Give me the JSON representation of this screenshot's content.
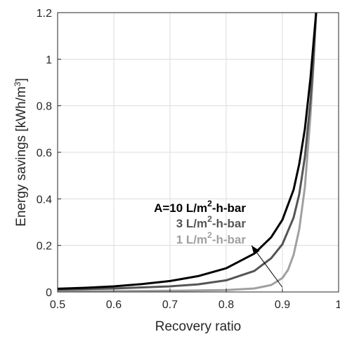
{
  "chart_data": {
    "type": "line",
    "xlabel": "Recovery ratio",
    "ylabel": {
      "text": "Energy savings [kWh/m",
      "sup": "3",
      "close": "]"
    },
    "xlim": [
      0.5,
      1.0
    ],
    "ylim": [
      0,
      1.2
    ],
    "grid": true,
    "xticks": [
      "0.5",
      "0.6",
      "0.7",
      "0.8",
      "0.9",
      "1"
    ],
    "yticks": [
      "0",
      "0.2",
      "0.4",
      "0.6",
      "0.8",
      "1",
      "1.2"
    ],
    "series": [
      {
        "name": "A=10 L/m2-h-bar",
        "color": "#000000",
        "points": [
          [
            0.5,
            0.014
          ],
          [
            0.55,
            0.018
          ],
          [
            0.6,
            0.024
          ],
          [
            0.65,
            0.034
          ],
          [
            0.7,
            0.047
          ],
          [
            0.75,
            0.068
          ],
          [
            0.8,
            0.102
          ],
          [
            0.85,
            0.165
          ],
          [
            0.88,
            0.235
          ],
          [
            0.9,
            0.31
          ],
          [
            0.92,
            0.44
          ],
          [
            0.93,
            0.55
          ],
          [
            0.94,
            0.7
          ],
          [
            0.95,
            0.92
          ],
          [
            0.955,
            1.06
          ],
          [
            0.96,
            1.2
          ]
        ]
      },
      {
        "name": "3 L/m2-h-bar",
        "color": "#555555",
        "points": [
          [
            0.5,
            0.01
          ],
          [
            0.6,
            0.015
          ],
          [
            0.7,
            0.024
          ],
          [
            0.75,
            0.033
          ],
          [
            0.8,
            0.05
          ],
          [
            0.85,
            0.09
          ],
          [
            0.88,
            0.145
          ],
          [
            0.9,
            0.205
          ],
          [
            0.92,
            0.32
          ],
          [
            0.93,
            0.42
          ],
          [
            0.94,
            0.58
          ],
          [
            0.95,
            0.82
          ],
          [
            0.955,
            0.99
          ],
          [
            0.96,
            1.2
          ]
        ]
      },
      {
        "name": "1 L/m2-h-bar",
        "color": "#a0a0a0",
        "points": [
          [
            0.5,
            0.003
          ],
          [
            0.6,
            0.004
          ],
          [
            0.7,
            0.005
          ],
          [
            0.8,
            0.008
          ],
          [
            0.85,
            0.015
          ],
          [
            0.88,
            0.03
          ],
          [
            0.9,
            0.06
          ],
          [
            0.91,
            0.095
          ],
          [
            0.92,
            0.16
          ],
          [
            0.93,
            0.27
          ],
          [
            0.94,
            0.45
          ],
          [
            0.95,
            0.76
          ],
          [
            0.955,
            0.96
          ],
          [
            0.96,
            1.2
          ]
        ]
      }
    ],
    "annotations": [
      {
        "parts": [
          "A=10 L/m",
          "2",
          "-h-bar"
        ],
        "color": "#000000"
      },
      {
        "parts": [
          "3 L/m",
          "2",
          "-h-bar"
        ],
        "color": "#555555"
      },
      {
        "parts": [
          "1 L/m",
          "2",
          "-h-bar"
        ],
        "color": "#a0a0a0"
      }
    ],
    "arrow": {
      "from": [
        0.9,
        0.02
      ],
      "to": [
        0.845,
        0.2
      ],
      "color": "#000000"
    }
  }
}
